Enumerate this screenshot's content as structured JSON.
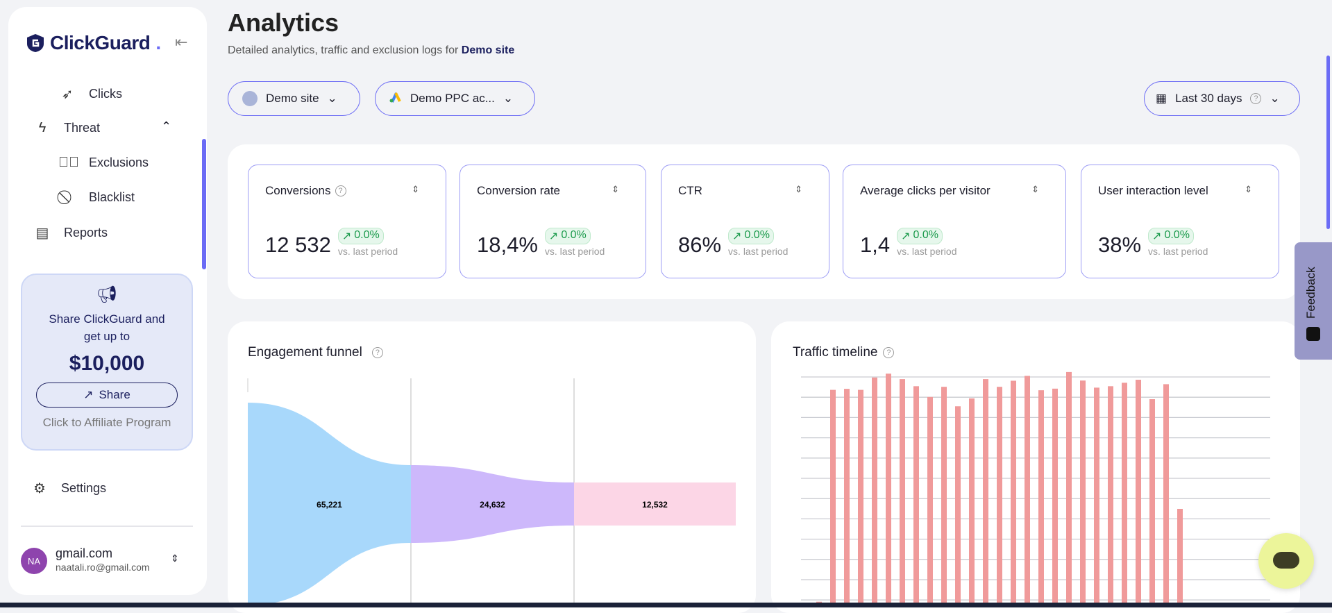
{
  "sidebar": {
    "brand": "ClickGuard",
    "items": [
      {
        "label": "Clicks",
        "icon": "cursor-click-icon"
      },
      {
        "label": "Threat",
        "icon": "lightning-icon"
      },
      {
        "label": "Exclusions",
        "icon": "check-badge-icon"
      },
      {
        "label": "Blacklist",
        "icon": "ban-icon"
      },
      {
        "label": "Reports",
        "icon": "document-icon"
      }
    ],
    "promo": {
      "text1": "Share ClickGuard and",
      "text2": "get up to",
      "amount": "$10,000",
      "button": "Share",
      "link": "Click to Affiliate Program"
    },
    "settings": "Settings",
    "user": {
      "initials": "NA",
      "name": "gmail.com",
      "email": "naatali.ro@gmail.com"
    }
  },
  "header": {
    "title": "Analytics",
    "subtitle": "Detailed analytics, traffic and exclusion logs for ",
    "site": "Demo site"
  },
  "filters": {
    "site": "Demo site",
    "account": "Demo PPC ac...",
    "date": "Last 30 days"
  },
  "kpis": [
    {
      "label": "Conversions",
      "value": "12 532",
      "change": "0.0%",
      "vs": "vs. last period",
      "help": true
    },
    {
      "label": "Conversion rate",
      "value": "18,4%",
      "change": "0.0%",
      "vs": "vs. last period"
    },
    {
      "label": "CTR",
      "value": "86%",
      "change": "0.0%",
      "vs": "vs. last period"
    },
    {
      "label": "Average clicks per visitor",
      "value": "1,4",
      "change": "0.0%",
      "vs": "vs. last period"
    },
    {
      "label": "User interaction level",
      "value": "38%",
      "change": "0.0%",
      "vs": "vs. last period"
    }
  ],
  "funnel": {
    "title": "Engagement funnel",
    "stages": [
      "65,221",
      "24,632",
      "12,532"
    ],
    "colors": [
      "#a8d8fb",
      "#cdb8fb",
      "#fcd6e6"
    ]
  },
  "traffic": {
    "title": "Traffic timeline",
    "bar_color": "#f09a9a"
  },
  "feedback": "Feedback",
  "chart_data": {
    "type": "bar",
    "title": "Traffic timeline",
    "values": [
      0.9,
      11.35,
      11.4,
      11.35,
      11.96,
      12.15,
      11.88,
      11.53,
      11.0,
      11.5,
      10.54,
      10.93,
      11.88,
      11.5,
      11.8,
      12.04,
      11.33,
      11.41,
      12.23,
      11.81,
      11.46,
      11.53,
      11.7,
      11.85,
      10.89,
      11.63,
      5.48
    ],
    "grid": true
  }
}
